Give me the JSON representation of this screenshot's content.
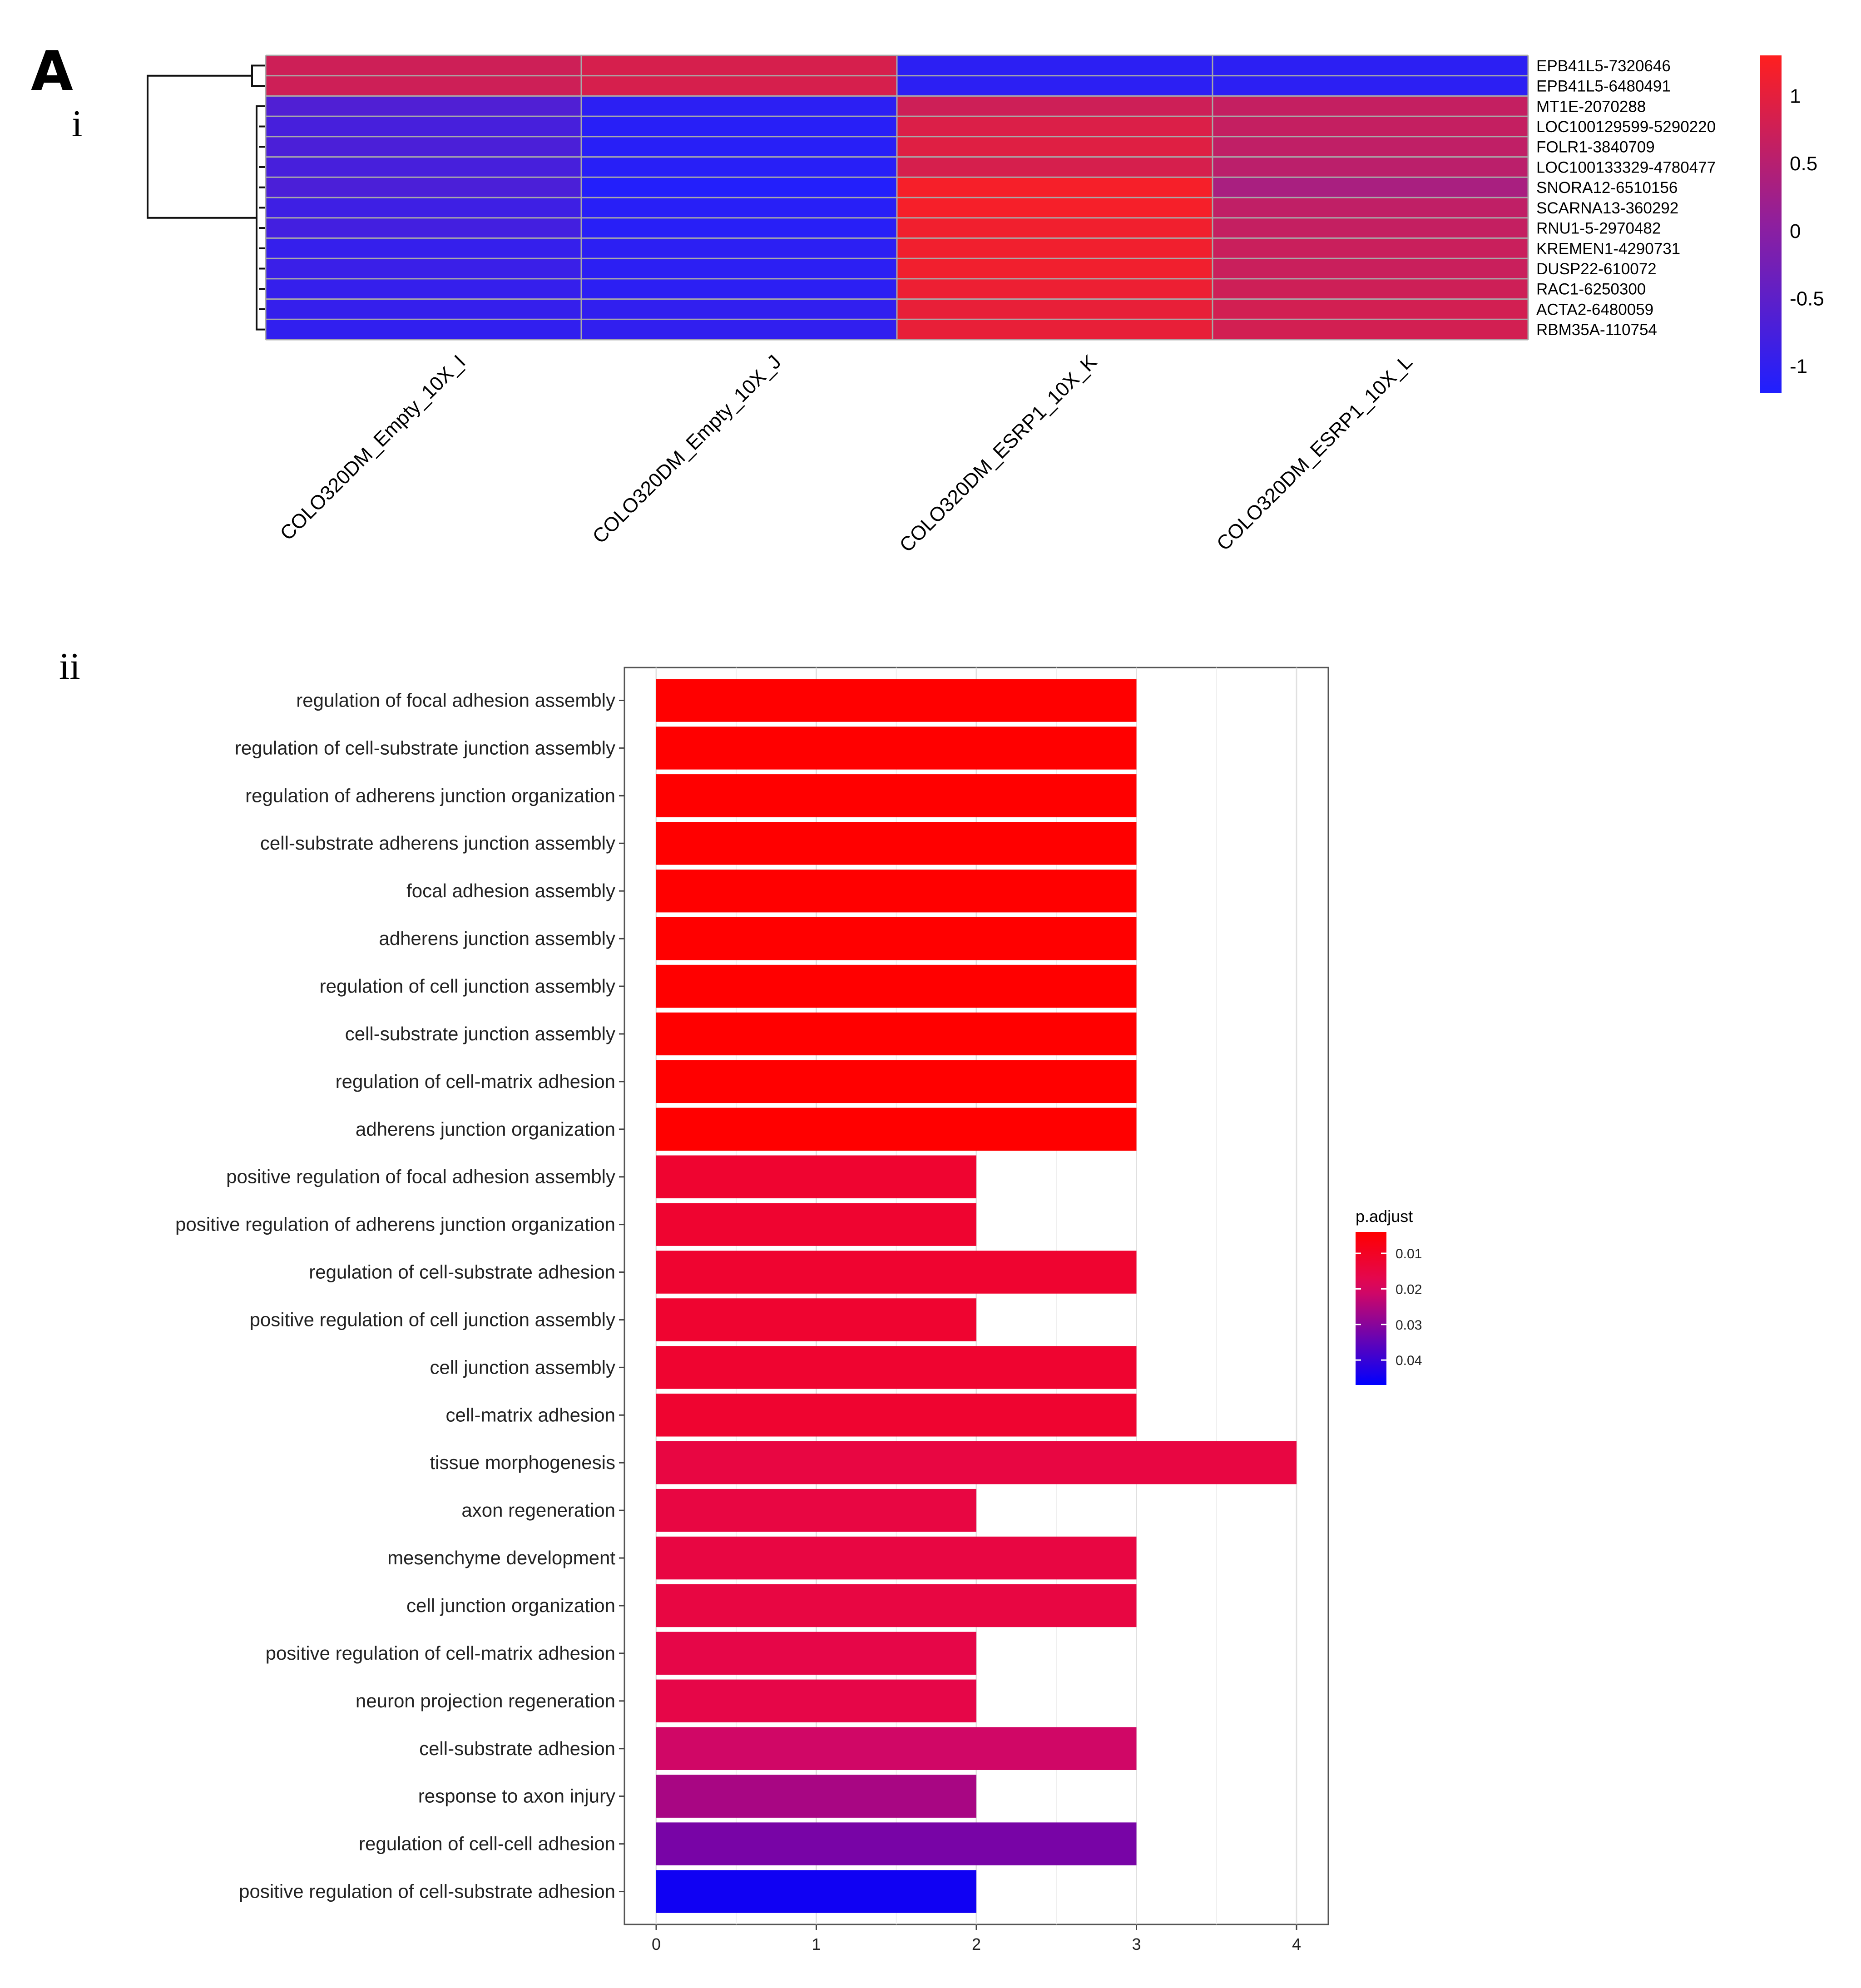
{
  "panel_label": "A",
  "panels": [
    {
      "label": "i"
    },
    {
      "label": "ii"
    }
  ],
  "chart_data": [
    {
      "type": "heatmap",
      "title": "",
      "columns": [
        "COLO320DM_Empty_10X_I",
        "COLO320DM_Empty_10X_J",
        "COLO320DM_ESRP1_10X_K",
        "COLO320DM_ESRP1_10X_L"
      ],
      "rows": [
        "EPB41L5-7320646",
        "EPB41L5-6480491",
        "MT1E-2070288",
        "LOC100129599-5290220",
        "FOLR1-3840709",
        "LOC100133329-4780477",
        "SNORA12-6510156",
        "SCARNA13-360292",
        "RNU1-5-2970482",
        "KREMEN1-4290731",
        "DUSP22-610072",
        "RAC1-6250300",
        "ACTA2-6480059",
        "RBM35A-110754"
      ],
      "values": [
        [
          0.75,
          0.85,
          -1.05,
          -1.05
        ],
        [
          0.75,
          0.85,
          -1.05,
          -1.05
        ],
        [
          -0.65,
          -1.05,
          0.75,
          0.65
        ],
        [
          -0.75,
          -1.1,
          0.9,
          0.65
        ],
        [
          -0.7,
          -1.1,
          0.95,
          0.6
        ],
        [
          -0.75,
          -1.1,
          0.85,
          0.55
        ],
        [
          -0.7,
          -1.15,
          1.2,
          0.35
        ],
        [
          -0.85,
          -1.1,
          1.2,
          0.6
        ],
        [
          -0.8,
          -1.1,
          1.15,
          0.65
        ],
        [
          -0.95,
          -1.05,
          1.15,
          0.7
        ],
        [
          -0.9,
          -1.05,
          1.15,
          0.7
        ],
        [
          -0.95,
          -1.05,
          1.1,
          0.75
        ],
        [
          -0.95,
          -1.0,
          1.05,
          0.8
        ],
        [
          -1.0,
          -1.0,
          1.05,
          0.8
        ]
      ],
      "color_scale": {
        "min": -1.2,
        "max": 1.3,
        "low": "#1f1fff",
        "mid": "#8e1f9e",
        "high": "#ff1f1f",
        "ticks": [
          1,
          0.5,
          0,
          -0.5,
          -1
        ],
        "tick_labels": [
          "1",
          "0.5",
          "0",
          "-0.5",
          "-1"
        ]
      },
      "row_dendrogram": true,
      "legend_position": "right"
    },
    {
      "type": "bar",
      "orientation": "horizontal",
      "title": "",
      "xlabel": "",
      "ylabel": "",
      "categories": [
        "regulation of focal adhesion assembly",
        "regulation of cell-substrate junction assembly",
        "regulation of adherens junction organization",
        "cell-substrate adherens junction assembly",
        "focal adhesion assembly",
        "adherens junction assembly",
        "regulation of cell junction assembly",
        "cell-substrate junction assembly",
        "regulation of cell-matrix adhesion",
        "adherens junction organization",
        "positive regulation of focal adhesion assembly",
        "positive regulation of adherens junction organization",
        "regulation of cell-substrate adhesion",
        "positive regulation of cell junction assembly",
        "cell junction assembly",
        "cell-matrix adhesion",
        "tissue morphogenesis",
        "axon regeneration",
        "mesenchyme development",
        "cell junction organization",
        "positive regulation of cell-matrix adhesion",
        "neuron projection regeneration",
        "cell-substrate adhesion",
        "response to axon injury",
        "regulation of cell-cell adhesion",
        "positive regulation of cell-substrate adhesion"
      ],
      "values": [
        3,
        3,
        3,
        3,
        3,
        3,
        3,
        3,
        3,
        3,
        2,
        2,
        3,
        2,
        3,
        3,
        4,
        2,
        3,
        3,
        2,
        2,
        3,
        2,
        3,
        2
      ],
      "p_adjust": [
        0.004,
        0.004,
        0.004,
        0.004,
        0.004,
        0.004,
        0.004,
        0.004,
        0.004,
        0.004,
        0.012,
        0.012,
        0.012,
        0.012,
        0.012,
        0.012,
        0.015,
        0.015,
        0.015,
        0.015,
        0.016,
        0.016,
        0.021,
        0.026,
        0.032,
        0.045
      ],
      "xlim": [
        0,
        4.2
      ],
      "xticks": [
        0,
        1,
        2,
        3,
        4
      ],
      "grid": true,
      "legend": {
        "title": "p.adjust",
        "position": "right",
        "ticks": [
          0.01,
          0.02,
          0.03,
          0.04
        ],
        "tick_labels": [
          "0.01",
          "0.02",
          "0.03",
          "0.04"
        ],
        "min": 0.004,
        "max": 0.047,
        "low_color": "#ff0000",
        "mid_color": "#e0085a",
        "high_color": "#0000ff"
      }
    }
  ]
}
